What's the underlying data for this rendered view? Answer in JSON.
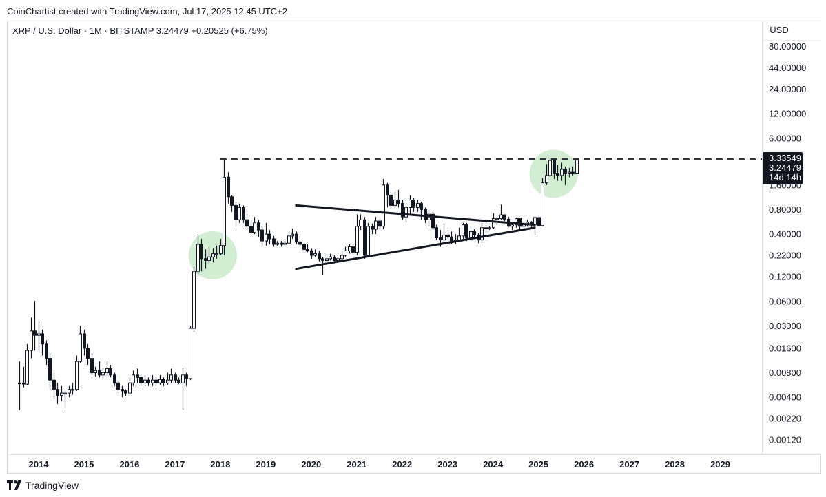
{
  "header": {
    "credit": "CoinChartist created with TradingView.com, Jul 17, 2025 12:45 UTC+2",
    "symbol_line": "XRP / U.S. Dollar · 1M · BITSTAMP  3.24479  +0.20525 (+6.75%)"
  },
  "footer": {
    "brand": "TradingView"
  },
  "colors": {
    "up": "#ffffff",
    "down": "#131722",
    "outline": "#131722",
    "highlight": "#c9ebcb",
    "tag_bg": "#131722"
  },
  "chart_data": {
    "type": "candlestick",
    "symbol": "XRP / U.S. Dollar",
    "interval": "1M",
    "exchange": "BITSTAMP",
    "last": 3.24479,
    "change": 0.20525,
    "change_pct": 6.75,
    "scale": "log",
    "currency": "USD",
    "ylim": [
      0.0008,
      100
    ],
    "xlim": [
      "2013-05",
      "2029-12"
    ],
    "y_ticks": [
      "80.00000",
      "44.00000",
      "24.00000",
      "12.00000",
      "6.00000",
      "1.60000",
      "0.80000",
      "0.40000",
      "0.22000",
      "0.12000",
      "0.06000",
      "0.03000",
      "0.01600",
      "0.00800",
      "0.00400",
      "0.00220",
      "0.00120"
    ],
    "x_ticks": [
      "2014",
      "2015",
      "2016",
      "2017",
      "2018",
      "2019",
      "2020",
      "2021",
      "2022",
      "2023",
      "2024",
      "2025",
      "2026",
      "2027",
      "2028",
      "2029"
    ],
    "price_tags": [
      {
        "value": 3.33549,
        "label": "3.33549"
      },
      {
        "value": 3.24479,
        "label": "3.24479"
      },
      {
        "value": 3.24479,
        "label": "14d 14h"
      }
    ],
    "candles": [
      [
        "2013-08",
        0.006,
        0.006,
        0.011,
        0.0028
      ],
      [
        "2013-09",
        0.006,
        0.0058,
        0.0095,
        0.0053
      ],
      [
        "2013-10",
        0.0058,
        0.015,
        0.018,
        0.0056
      ],
      [
        "2013-11",
        0.015,
        0.026,
        0.038,
        0.012
      ],
      [
        "2013-12",
        0.026,
        0.023,
        0.061,
        0.015
      ],
      [
        "2014-01",
        0.023,
        0.024,
        0.034,
        0.014
      ],
      [
        "2014-02",
        0.024,
        0.018,
        0.027,
        0.013
      ],
      [
        "2014-03",
        0.018,
        0.012,
        0.02,
        0.01
      ],
      [
        "2014-04",
        0.012,
        0.0065,
        0.014,
        0.005
      ],
      [
        "2014-05",
        0.0065,
        0.005,
        0.008,
        0.0038
      ],
      [
        "2014-06",
        0.005,
        0.0042,
        0.006,
        0.0033
      ],
      [
        "2014-07",
        0.0042,
        0.0045,
        0.0055,
        0.0036
      ],
      [
        "2014-08",
        0.0045,
        0.0045,
        0.005,
        0.0029
      ],
      [
        "2014-09",
        0.0045,
        0.005,
        0.0055,
        0.004
      ],
      [
        "2014-10",
        0.005,
        0.005,
        0.006,
        0.0043
      ],
      [
        "2014-11",
        0.005,
        0.011,
        0.013,
        0.0048
      ],
      [
        "2014-12",
        0.011,
        0.024,
        0.03,
        0.0105
      ],
      [
        "2015-01",
        0.024,
        0.016,
        0.027,
        0.013
      ],
      [
        "2015-02",
        0.016,
        0.012,
        0.018,
        0.01
      ],
      [
        "2015-03",
        0.012,
        0.008,
        0.014,
        0.0075
      ],
      [
        "2015-04",
        0.008,
        0.0085,
        0.0095,
        0.0072
      ],
      [
        "2015-05",
        0.0085,
        0.0075,
        0.011,
        0.007
      ],
      [
        "2015-06",
        0.0075,
        0.008,
        0.009,
        0.0068
      ],
      [
        "2015-07",
        0.008,
        0.009,
        0.011,
        0.0072
      ],
      [
        "2015-08",
        0.009,
        0.0075,
        0.01,
        0.007
      ],
      [
        "2015-09",
        0.0075,
        0.006,
        0.008,
        0.0055
      ],
      [
        "2015-10",
        0.006,
        0.005,
        0.0065,
        0.0045
      ],
      [
        "2015-11",
        0.005,
        0.0048,
        0.0055,
        0.004
      ],
      [
        "2015-12",
        0.0048,
        0.0045,
        0.005,
        0.0041
      ],
      [
        "2016-01",
        0.0045,
        0.006,
        0.007,
        0.0043
      ],
      [
        "2016-02",
        0.006,
        0.0075,
        0.0085,
        0.0055
      ],
      [
        "2016-03",
        0.0075,
        0.007,
        0.009,
        0.006
      ],
      [
        "2016-04",
        0.007,
        0.006,
        0.0075,
        0.0055
      ],
      [
        "2016-05",
        0.006,
        0.0065,
        0.0075,
        0.0055
      ],
      [
        "2016-06",
        0.0065,
        0.006,
        0.007,
        0.0055
      ],
      [
        "2016-07",
        0.006,
        0.0065,
        0.0075,
        0.0055
      ],
      [
        "2016-08",
        0.0065,
        0.006,
        0.007,
        0.0055
      ],
      [
        "2016-09",
        0.006,
        0.0066,
        0.0075,
        0.0057
      ],
      [
        "2016-10",
        0.0066,
        0.006,
        0.007,
        0.0055
      ],
      [
        "2016-11",
        0.006,
        0.0065,
        0.008,
        0.0057
      ],
      [
        "2016-12",
        0.0065,
        0.0075,
        0.009,
        0.006
      ],
      [
        "2017-01",
        0.0075,
        0.0065,
        0.008,
        0.006
      ],
      [
        "2017-02",
        0.0065,
        0.006,
        0.007,
        0.0058
      ],
      [
        "2017-03",
        0.006,
        0.0075,
        0.009,
        0.0028
      ],
      [
        "2017-04",
        0.0075,
        0.0068,
        0.008,
        0.0055
      ],
      [
        "2017-05",
        0.0068,
        0.028,
        0.03,
        0.0065
      ],
      [
        "2017-06",
        0.028,
        0.14,
        0.16,
        0.025
      ],
      [
        "2017-07",
        0.14,
        0.3,
        0.4,
        0.12
      ],
      [
        "2017-08",
        0.3,
        0.2,
        0.35,
        0.14
      ],
      [
        "2017-09",
        0.2,
        0.19,
        0.26,
        0.15
      ],
      [
        "2017-10",
        0.19,
        0.21,
        0.28,
        0.175
      ],
      [
        "2017-11",
        0.21,
        0.23,
        0.27,
        0.18
      ],
      [
        "2017-12",
        0.23,
        0.23,
        0.29,
        0.2
      ],
      [
        "2018-01",
        0.23,
        0.29,
        0.35,
        0.22
      ],
      [
        "2018-02",
        0.29,
        2.0,
        3.3,
        0.22
      ],
      [
        "2018-03",
        2.0,
        1.15,
        2.3,
        0.95
      ],
      [
        "2018-04",
        1.15,
        0.9,
        1.2,
        0.75
      ],
      [
        "2018-05",
        0.9,
        0.6,
        1.0,
        0.5
      ],
      [
        "2018-06",
        0.6,
        0.85,
        0.95,
        0.55
      ],
      [
        "2018-07",
        0.85,
        0.6,
        0.9,
        0.55
      ],
      [
        "2018-08",
        0.6,
        0.5,
        0.7,
        0.45
      ],
      [
        "2018-09",
        0.5,
        0.42,
        0.6,
        0.4
      ],
      [
        "2018-10",
        0.42,
        0.55,
        0.65,
        0.4
      ],
      [
        "2018-11",
        0.55,
        0.45,
        0.6,
        0.37
      ],
      [
        "2018-12",
        0.45,
        0.33,
        0.5,
        0.28
      ],
      [
        "2019-01",
        0.33,
        0.4,
        0.55,
        0.29
      ],
      [
        "2019-02",
        0.4,
        0.35,
        0.45,
        0.3
      ],
      [
        "2019-03",
        0.35,
        0.3,
        0.38,
        0.28
      ],
      [
        "2019-04",
        0.3,
        0.31,
        0.33,
        0.29
      ],
      [
        "2019-05",
        0.31,
        0.3,
        0.33,
        0.28
      ],
      [
        "2019-06",
        0.3,
        0.31,
        0.33,
        0.29
      ],
      [
        "2019-07",
        0.31,
        0.38,
        0.43,
        0.3
      ],
      [
        "2019-08",
        0.38,
        0.4,
        0.47,
        0.35
      ],
      [
        "2019-09",
        0.4,
        0.32,
        0.43,
        0.3
      ],
      [
        "2019-10",
        0.32,
        0.3,
        0.34,
        0.28
      ],
      [
        "2019-11",
        0.3,
        0.26,
        0.31,
        0.24
      ],
      [
        "2019-12",
        0.26,
        0.25,
        0.3,
        0.24
      ],
      [
        "2020-01",
        0.25,
        0.22,
        0.27,
        0.2
      ],
      [
        "2020-02",
        0.22,
        0.23,
        0.26,
        0.21
      ],
      [
        "2020-03",
        0.23,
        0.2,
        0.25,
        0.185
      ],
      [
        "2020-04",
        0.2,
        0.19,
        0.21,
        0.125
      ],
      [
        "2020-05",
        0.19,
        0.2,
        0.22,
        0.185
      ],
      [
        "2020-06",
        0.2,
        0.21,
        0.23,
        0.19
      ],
      [
        "2020-07",
        0.21,
        0.19,
        0.22,
        0.175
      ],
      [
        "2020-08",
        0.19,
        0.2,
        0.21,
        0.18
      ],
      [
        "2020-09",
        0.2,
        0.22,
        0.25,
        0.19
      ],
      [
        "2020-10",
        0.22,
        0.25,
        0.28,
        0.21
      ],
      [
        "2020-11",
        0.25,
        0.28,
        0.3,
        0.23
      ],
      [
        "2020-12",
        0.28,
        0.24,
        0.3,
        0.22
      ],
      [
        "2021-01",
        0.24,
        0.5,
        0.7,
        0.22
      ],
      [
        "2021-02",
        0.5,
        0.6,
        0.7,
        0.45
      ],
      [
        "2021-03",
        0.6,
        0.22,
        0.65,
        0.2
      ],
      [
        "2021-04",
        0.22,
        0.5,
        0.55,
        0.21
      ],
      [
        "2021-05",
        0.5,
        0.46,
        0.54,
        0.4
      ],
      [
        "2021-06",
        0.46,
        0.58,
        0.65,
        0.4
      ],
      [
        "2021-07",
        0.58,
        0.5,
        0.62,
        0.45
      ],
      [
        "2021-08",
        0.5,
        1.6,
        1.9,
        0.46
      ],
      [
        "2021-09",
        1.6,
        1.2,
        1.7,
        0.85
      ],
      [
        "2021-10",
        1.2,
        0.9,
        1.3,
        0.82
      ],
      [
        "2021-11",
        0.9,
        1.05,
        1.3,
        0.85
      ],
      [
        "2021-12",
        1.05,
        0.95,
        1.4,
        0.85
      ],
      [
        "2022-01",
        0.95,
        0.65,
        1.05,
        0.6
      ],
      [
        "2022-02",
        0.65,
        0.85,
        1.0,
        0.55
      ],
      [
        "2022-03",
        0.85,
        1.05,
        1.2,
        0.7
      ],
      [
        "2022-04",
        1.05,
        0.85,
        1.1,
        0.75
      ],
      [
        "2022-05",
        0.85,
        0.95,
        1.05,
        0.75
      ],
      [
        "2022-06",
        0.95,
        0.8,
        1.0,
        0.6
      ],
      [
        "2022-07",
        0.8,
        0.6,
        0.85,
        0.55
      ],
      [
        "2022-08",
        0.6,
        0.7,
        0.8,
        0.5
      ],
      [
        "2022-09",
        0.7,
        0.48,
        0.75,
        0.45
      ],
      [
        "2022-10",
        0.48,
        0.36,
        0.52,
        0.34
      ],
      [
        "2022-11",
        0.36,
        0.34,
        0.45,
        0.28
      ],
      [
        "2022-12",
        0.34,
        0.39,
        0.54,
        0.3
      ],
      [
        "2023-01",
        0.39,
        0.37,
        0.45,
        0.33
      ],
      [
        "2023-02",
        0.37,
        0.33,
        0.43,
        0.3
      ],
      [
        "2023-03",
        0.33,
        0.34,
        0.4,
        0.3
      ],
      [
        "2023-04",
        0.34,
        0.38,
        0.48,
        0.32
      ],
      [
        "2023-05",
        0.38,
        0.52,
        0.55,
        0.35
      ],
      [
        "2023-06",
        0.52,
        0.36,
        0.55,
        0.33
      ],
      [
        "2023-07",
        0.36,
        0.43,
        0.45,
        0.33
      ],
      [
        "2023-08",
        0.43,
        0.39,
        0.46,
        0.36
      ],
      [
        "2023-09",
        0.39,
        0.34,
        0.41,
        0.31
      ],
      [
        "2023-10",
        0.34,
        0.48,
        0.55,
        0.31
      ],
      [
        "2023-11",
        0.48,
        0.47,
        0.52,
        0.42
      ],
      [
        "2023-12",
        0.47,
        0.48,
        0.5,
        0.45
      ],
      [
        "2024-01",
        0.48,
        0.62,
        0.72,
        0.46
      ],
      [
        "2024-02",
        0.62,
        0.62,
        0.67,
        0.54
      ],
      [
        "2024-03",
        0.62,
        0.69,
        0.92,
        0.6
      ],
      [
        "2024-04",
        0.69,
        0.61,
        0.7,
        0.58
      ],
      [
        "2024-05",
        0.61,
        0.5,
        0.65,
        0.49
      ],
      [
        "2024-06",
        0.5,
        0.52,
        0.54,
        0.45
      ],
      [
        "2024-07",
        0.52,
        0.62,
        0.64,
        0.48
      ],
      [
        "2024-08",
        0.62,
        0.5,
        0.64,
        0.44
      ],
      [
        "2024-09",
        0.5,
        0.52,
        0.54,
        0.46
      ],
      [
        "2024-10",
        0.52,
        0.56,
        0.6,
        0.5
      ],
      [
        "2024-11",
        0.56,
        0.52,
        0.58,
        0.48
      ],
      [
        "2024-12",
        0.52,
        0.64,
        0.66,
        0.39
      ],
      [
        "2025-01",
        0.64,
        0.51,
        0.65,
        0.49
      ],
      [
        "2025-02",
        0.51,
        1.7,
        1.95,
        0.5
      ],
      [
        "2025-03",
        1.7,
        2.1,
        2.9,
        1.6
      ],
      [
        "2025-04",
        2.1,
        3.2,
        3.4,
        2.0
      ],
      [
        "2025-05",
        3.2,
        2.2,
        3.3,
        1.9
      ],
      [
        "2025-06",
        2.2,
        2.1,
        2.8,
        1.8
      ],
      [
        "2025-07",
        2.1,
        2.5,
        3.0,
        1.8
      ],
      [
        "2025-08",
        2.5,
        2.2,
        2.7,
        1.6
      ],
      [
        "2025-09",
        2.2,
        2.3,
        2.6,
        2.0
      ],
      [
        "2025-10",
        2.3,
        2.2,
        2.7,
        2.1
      ],
      [
        "2025-11",
        2.2,
        3.2448,
        3.3355,
        2.2
      ]
    ],
    "annotations": [
      {
        "type": "horizontal_dashed_line",
        "value": 3.33549,
        "from": "2018-01"
      },
      {
        "type": "trendline",
        "from": [
          "2019-09",
          0.9
        ],
        "to": [
          "2024-12",
          0.52
        ]
      },
      {
        "type": "trendline",
        "from": [
          "2019-09",
          0.15
        ],
        "to": [
          "2024-12",
          0.48
        ]
      },
      {
        "type": "circle",
        "center": [
          "2017-11",
          0.22
        ]
      },
      {
        "type": "circle",
        "center": [
          "2025-05",
          2.2
        ]
      }
    ]
  }
}
